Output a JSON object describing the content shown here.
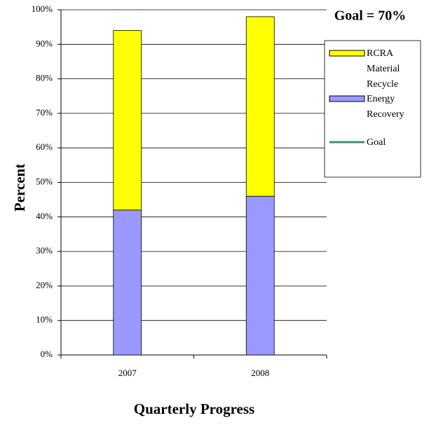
{
  "chart_data": {
    "type": "bar",
    "stacked": true,
    "annotation": "Goal = 70%",
    "x_label": "Quarterly Progress",
    "y_label": "Percent",
    "categories": [
      "2007",
      "2008"
    ],
    "series": [
      {
        "name": "RCRA Material Recycle",
        "color": "#ffff00",
        "values": [
          52,
          52
        ]
      },
      {
        "name": "Energy Recovery",
        "color": "#9999ff",
        "values": [
          42,
          46
        ]
      },
      {
        "name": "Goal",
        "color": "#339966",
        "type": "line",
        "values": [
          null,
          null
        ]
      }
    ],
    "ylim": [
      0,
      100
    ],
    "yticks": [
      {
        "value": 0,
        "label": "0%"
      },
      {
        "value": 10,
        "label": "10%"
      },
      {
        "value": 20,
        "label": "20%"
      },
      {
        "value": 30,
        "label": "30%"
      },
      {
        "value": 40,
        "label": "40%"
      },
      {
        "value": 50,
        "label": "50%"
      },
      {
        "value": 60,
        "label": "60%"
      },
      {
        "value": 70,
        "label": "70%"
      },
      {
        "value": 80,
        "label": "80%"
      },
      {
        "value": 90,
        "label": "90%"
      },
      {
        "value": 100,
        "label": "100%"
      }
    ],
    "grid": true,
    "legend": "right"
  }
}
